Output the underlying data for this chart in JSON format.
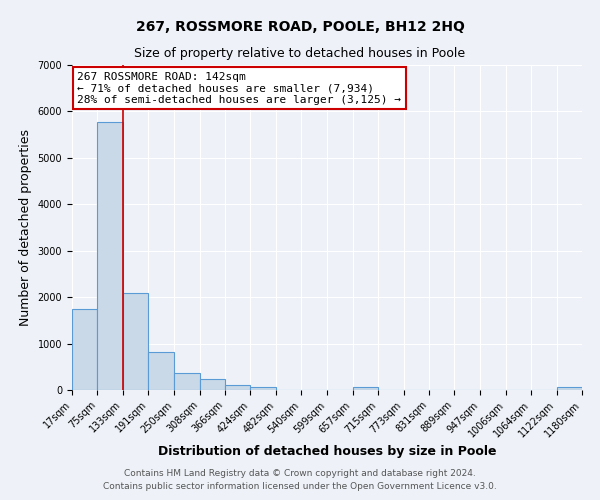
{
  "title": "267, ROSSMORE ROAD, POOLE, BH12 2HQ",
  "subtitle": "Size of property relative to detached houses in Poole",
  "xlabel": "Distribution of detached houses by size in Poole",
  "ylabel": "Number of detached properties",
  "bin_edges": [
    17,
    75,
    133,
    191,
    250,
    308,
    366,
    424,
    482,
    540,
    599,
    657,
    715,
    773,
    831,
    889,
    947,
    1006,
    1064,
    1122,
    1180
  ],
  "bin_labels": [
    "17sqm",
    "75sqm",
    "133sqm",
    "191sqm",
    "250sqm",
    "308sqm",
    "366sqm",
    "424sqm",
    "482sqm",
    "540sqm",
    "599sqm",
    "657sqm",
    "715sqm",
    "773sqm",
    "831sqm",
    "889sqm",
    "947sqm",
    "1006sqm",
    "1064sqm",
    "1122sqm",
    "1180sqm"
  ],
  "bar_heights": [
    1750,
    5780,
    2080,
    810,
    370,
    230,
    115,
    60,
    0,
    0,
    0,
    60,
    0,
    0,
    0,
    0,
    0,
    0,
    0,
    60
  ],
  "property_value": 142,
  "bar_color": "#c9d9e8",
  "bar_edge_color": "#5b9bd5",
  "red_line_x": 133,
  "annotation_line1": "267 ROSSMORE ROAD: 142sqm",
  "annotation_line2": "← 71% of detached houses are smaller (7,934)",
  "annotation_line3": "28% of semi-detached houses are larger (3,125) →",
  "annotation_box_color": "#ffffff",
  "annotation_box_edge_color": "#cc0000",
  "ylim": [
    0,
    7000
  ],
  "yticks": [
    0,
    1000,
    2000,
    3000,
    4000,
    5000,
    6000,
    7000
  ],
  "footer1": "Contains HM Land Registry data © Crown copyright and database right 2024.",
  "footer2": "Contains public sector information licensed under the Open Government Licence v3.0.",
  "bg_color": "#eef2f8",
  "plot_bg_color": "#eef2f8",
  "grid_color": "#ffffff",
  "title_fontsize": 10,
  "subtitle_fontsize": 9,
  "axis_label_fontsize": 9,
  "tick_fontsize": 7,
  "annotation_fontsize": 8,
  "footer_fontsize": 6.5
}
